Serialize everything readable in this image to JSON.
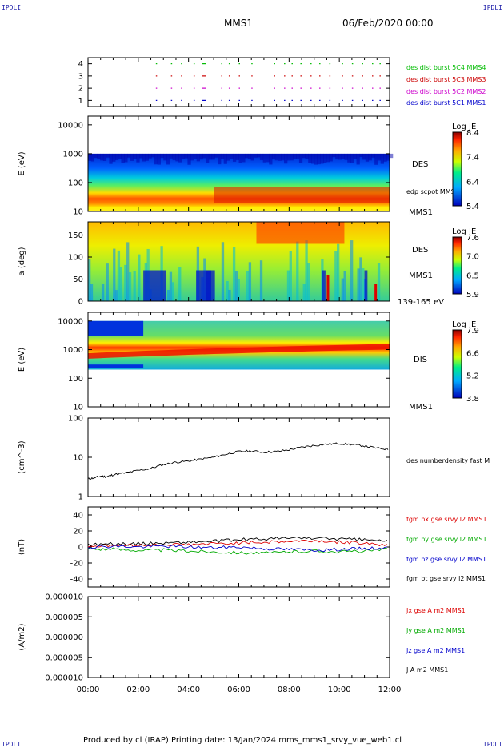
{
  "corners": {
    "tl": "IPDLI",
    "tr": "IPDLI",
    "bl": "IPDLI",
    "br": "IPDLI"
  },
  "header": {
    "spacecraft": "MMS1",
    "date": "06/Feb/2020 00:00"
  },
  "footer": {
    "text": "Produced by cl (IRAP)   Printing date: 13/Jan/2024   mms_mms1_srvy_vue_web1.cl"
  },
  "colors": {
    "mms1": "#0000cc",
    "mms2": "#cc00cc",
    "mms3": "#cc0000",
    "mms4": "#00bb00",
    "bx": "#dd0000",
    "by": "#00aa00",
    "bz": "#0000cc",
    "bt": "#000000"
  },
  "chart_data": [
    {
      "type": "scatter",
      "id": "burst",
      "yticks": [
        "1",
        "2",
        "3",
        "4"
      ],
      "series": [
        {
          "name": "des dist burst 5C1 MMS1",
          "y": 1,
          "x_hours": [
            2.7,
            3.3,
            3.7,
            4.2,
            4.55,
            5.3,
            5.6,
            6.0,
            6.5,
            7.4,
            7.8,
            8.1,
            8.45,
            8.85,
            9.2,
            9.6,
            10.1,
            10.5,
            10.9,
            11.3,
            11.6
          ]
        },
        {
          "name": "des dist burst 5C2 MMS2",
          "y": 2,
          "x_hours": [
            2.7,
            3.3,
            3.7,
            4.2,
            4.55,
            5.3,
            5.6,
            6.0,
            6.5,
            7.4,
            7.8,
            8.1,
            8.45,
            8.85,
            9.2,
            9.6,
            10.1,
            10.5,
            10.9,
            11.3,
            11.6
          ]
        },
        {
          "name": "des dist burst 5C3 MMS3",
          "y": 3,
          "x_hours": [
            2.7,
            3.3,
            3.7,
            4.2,
            4.55,
            5.3,
            5.6,
            6.0,
            6.5,
            7.4,
            7.8,
            8.1,
            8.45,
            8.85,
            9.2,
            9.6,
            10.1,
            10.5,
            10.9,
            11.3,
            11.6
          ]
        },
        {
          "name": "des dist burst 5C4 MMS4",
          "y": 4,
          "x_hours": [
            2.7,
            3.3,
            3.7,
            4.2,
            4.55,
            5.3,
            5.6,
            6.0,
            6.5,
            7.4,
            7.8,
            8.1,
            8.45,
            8.85,
            9.2,
            9.6,
            10.1,
            10.5,
            10.9,
            11.3,
            11.6
          ]
        }
      ]
    },
    {
      "type": "heatmap",
      "id": "des_energy",
      "ylabel": "E (eV)",
      "yscale": "log",
      "ylim": [
        10,
        20000
      ],
      "yticks": [
        "10",
        "100",
        "1000",
        "10000"
      ],
      "right_labels": [
        "DES",
        "edp scpot MMS1",
        "MMS1"
      ],
      "colorbar": {
        "title": "Log JE",
        "ticks": [
          "8.4",
          "7.4",
          "6.4",
          "5.4"
        ]
      }
    },
    {
      "type": "heatmap",
      "id": "des_pitch",
      "ylabel": "a (deg)",
      "ylim": [
        0,
        180
      ],
      "yticks": [
        "0",
        "50",
        "100",
        "150"
      ],
      "right_labels": [
        "DES",
        "MMS1",
        "139-165 eV"
      ],
      "colorbar": {
        "title": "Log JE",
        "ticks": [
          "7.6",
          "7.0",
          "6.5",
          "5.9"
        ]
      }
    },
    {
      "type": "heatmap",
      "id": "dis_energy",
      "ylabel": "E (eV)",
      "yscale": "log",
      "ylim": [
        10,
        20000
      ],
      "yticks": [
        "10",
        "100",
        "1000",
        "10000"
      ],
      "right_labels": [
        "DIS",
        "MMS1"
      ],
      "colorbar": {
        "title": "Log JE",
        "ticks": [
          "7.9",
          "6.6",
          "5.2",
          "3.8"
        ]
      }
    },
    {
      "type": "line",
      "id": "density",
      "ylabel": "(cm^-3)",
      "yscale": "log",
      "ylim": [
        1,
        100
      ],
      "yticks": [
        "1",
        "10",
        "100"
      ],
      "series": [
        {
          "name": "des numberdensity fast M",
          "x": [
            0,
            0.25,
            0.5,
            0.75,
            1,
            1.5,
            2,
            2.5,
            3,
            3.5,
            4,
            4.5,
            5,
            5.5,
            6,
            6.5,
            7,
            7.5,
            8,
            8.5,
            9,
            9.5,
            10,
            10.5,
            11,
            11.5,
            12
          ],
          "y": [
            2.8,
            3.0,
            3.3,
            3.2,
            3.6,
            4.0,
            4.6,
            5.2,
            6.5,
            7.5,
            8.0,
            9.0,
            10.0,
            12.0,
            14.0,
            14.5,
            13.5,
            14.0,
            15.5,
            18.0,
            20.0,
            21.5,
            22.5,
            21.0,
            19.5,
            17.0,
            16.0
          ]
        }
      ]
    },
    {
      "type": "line",
      "id": "fgm",
      "ylabel": "(nT)",
      "ylim": [
        -50,
        50
      ],
      "yticks": [
        "-40",
        "-20",
        "0",
        "20",
        "40"
      ],
      "series": [
        {
          "name": "fgm bx gse srvy l2 MMS1",
          "x": [
            0,
            1,
            2,
            3,
            4,
            5,
            6,
            7,
            8,
            9,
            10,
            11,
            12
          ],
          "y": [
            1,
            2,
            2,
            3,
            3,
            4,
            5,
            6,
            7,
            8,
            6,
            5,
            2
          ]
        },
        {
          "name": "fgm by gse srvy l2 MMS1",
          "x": [
            0,
            1,
            2,
            3,
            4,
            5,
            6,
            7,
            8,
            9,
            10,
            11,
            12
          ],
          "y": [
            -2,
            -3,
            -4,
            -4,
            -5,
            -6,
            -7,
            -8,
            -6,
            -5,
            -6,
            -5,
            -3
          ]
        },
        {
          "name": "fgm bz gse srvy l2 MMS1",
          "x": [
            0,
            1,
            2,
            3,
            4,
            5,
            6,
            7,
            8,
            9,
            10,
            11,
            12
          ],
          "y": [
            0,
            1,
            0,
            1,
            0,
            -1,
            0,
            -2,
            -3,
            -4,
            -3,
            -2,
            -1
          ]
        },
        {
          "name": "fgm bt gse srvy l2 MMS1",
          "x": [
            0,
            1,
            2,
            3,
            4,
            5,
            6,
            7,
            8,
            9,
            10,
            11,
            12
          ],
          "y": [
            3,
            4,
            4,
            5,
            6,
            7,
            9,
            10,
            11,
            11,
            10,
            9,
            7
          ]
        }
      ]
    },
    {
      "type": "line",
      "id": "current",
      "ylabel": "(A/m2)",
      "ylim": [
        -1e-05,
        1e-05
      ],
      "yticks": [
        "-0.000010",
        "-0.000005",
        "0.000000",
        "0.000005",
        "0.000010"
      ],
      "series": [
        {
          "name": "Jx gse A m2 MMS1",
          "x": [
            0,
            12
          ],
          "y": [
            0,
            0
          ]
        },
        {
          "name": "Jy gse A m2 MMS1",
          "x": [
            0,
            12
          ],
          "y": [
            0,
            0
          ]
        },
        {
          "name": "Jz gse A m2 MMS1",
          "x": [
            0,
            12
          ],
          "y": [
            0,
            0
          ]
        },
        {
          "name": "J A m2 MMS1",
          "x": [
            0,
            12
          ],
          "y": [
            0,
            0
          ]
        }
      ]
    }
  ],
  "xaxis": {
    "ticks": [
      "00:00",
      "02:00",
      "04:00",
      "06:00",
      "08:00",
      "10:00",
      "12:00"
    ],
    "range_hours": [
      0,
      12
    ]
  }
}
